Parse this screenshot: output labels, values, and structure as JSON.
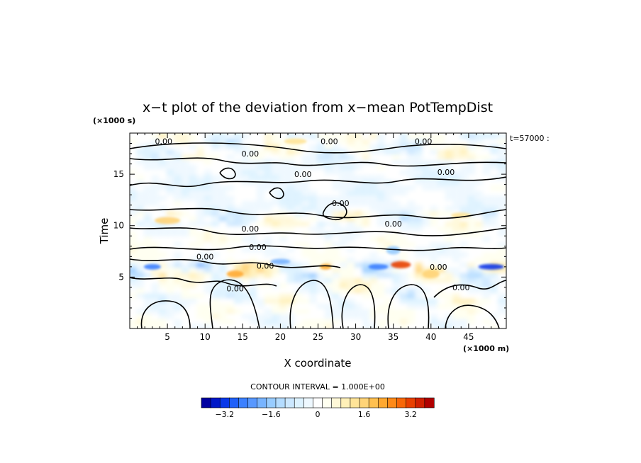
{
  "chart_data": {
    "type": "heatmap",
    "title": "x−t plot of the deviation from x−mean PotTempDist",
    "xlabel": "X coordinate",
    "ylabel": "Time",
    "x_unit": "(×1000 m)",
    "y_unit": "(×1000 s)",
    "time_label": "t=57000 :",
    "xlim": [
      0,
      50
    ],
    "ylim": [
      0,
      19
    ],
    "x_ticks": [
      5,
      10,
      15,
      20,
      25,
      30,
      35,
      40,
      45
    ],
    "y_ticks": [
      5,
      10,
      15
    ],
    "contour_interval_label": "CONTOUR INTERVAL = 1.000E+00",
    "contour_labels": [
      "0.00",
      "0.00",
      "0.00",
      "0.00",
      "0.00",
      "0.00",
      "0.00",
      "0.00",
      "0.00",
      "0.00",
      "0.00",
      "0.00",
      "0.00",
      "0.00",
      "0.00"
    ],
    "colorbar": {
      "range": [
        -4.0,
        4.0
      ],
      "ticks": [
        -3.2,
        -1.6,
        0,
        1.6,
        3.2
      ],
      "tick_labels": [
        "−3.2",
        "−1.6",
        "0",
        "1.6",
        "3.2"
      ],
      "colors": [
        "#0000a0",
        "#0018c8",
        "#0838e8",
        "#2060f8",
        "#3c80ff",
        "#5898ff",
        "#78b4ff",
        "#98ccff",
        "#b4dcff",
        "#cce8ff",
        "#ddf2ff",
        "#eef8ff",
        "#ffffff",
        "#fffff0",
        "#fff8d8",
        "#fff0b8",
        "#ffe498",
        "#ffd478",
        "#ffc050",
        "#ffa830",
        "#ff8a18",
        "#f86808",
        "#e84000",
        "#d02000",
        "#b00000"
      ]
    },
    "bands": [
      {
        "t": [
          0.0,
          2.5
        ],
        "anomaly": "weak warm/cool cells"
      },
      {
        "t": [
          2.5,
          5.0
        ],
        "anomaly": "warm and cool plumes"
      },
      {
        "t": [
          5.0,
          6.5
        ],
        "anomaly": "strong cool and warm couplets",
        "extremes": {
          "warm_max_x": 36,
          "cool_min_x": [
            3,
            33,
            48
          ]
        }
      },
      {
        "t": [
          6.5,
          10.0
        ],
        "anomaly": "near zero, weak warm"
      },
      {
        "t": [
          10.0,
          11.5
        ],
        "anomaly": "warm/cool streaks"
      },
      {
        "t": [
          11.5,
          16.5
        ],
        "anomaly": "weak cool"
      },
      {
        "t": [
          16.5,
          19.0
        ],
        "anomaly": "warm/cool layers"
      }
    ]
  }
}
